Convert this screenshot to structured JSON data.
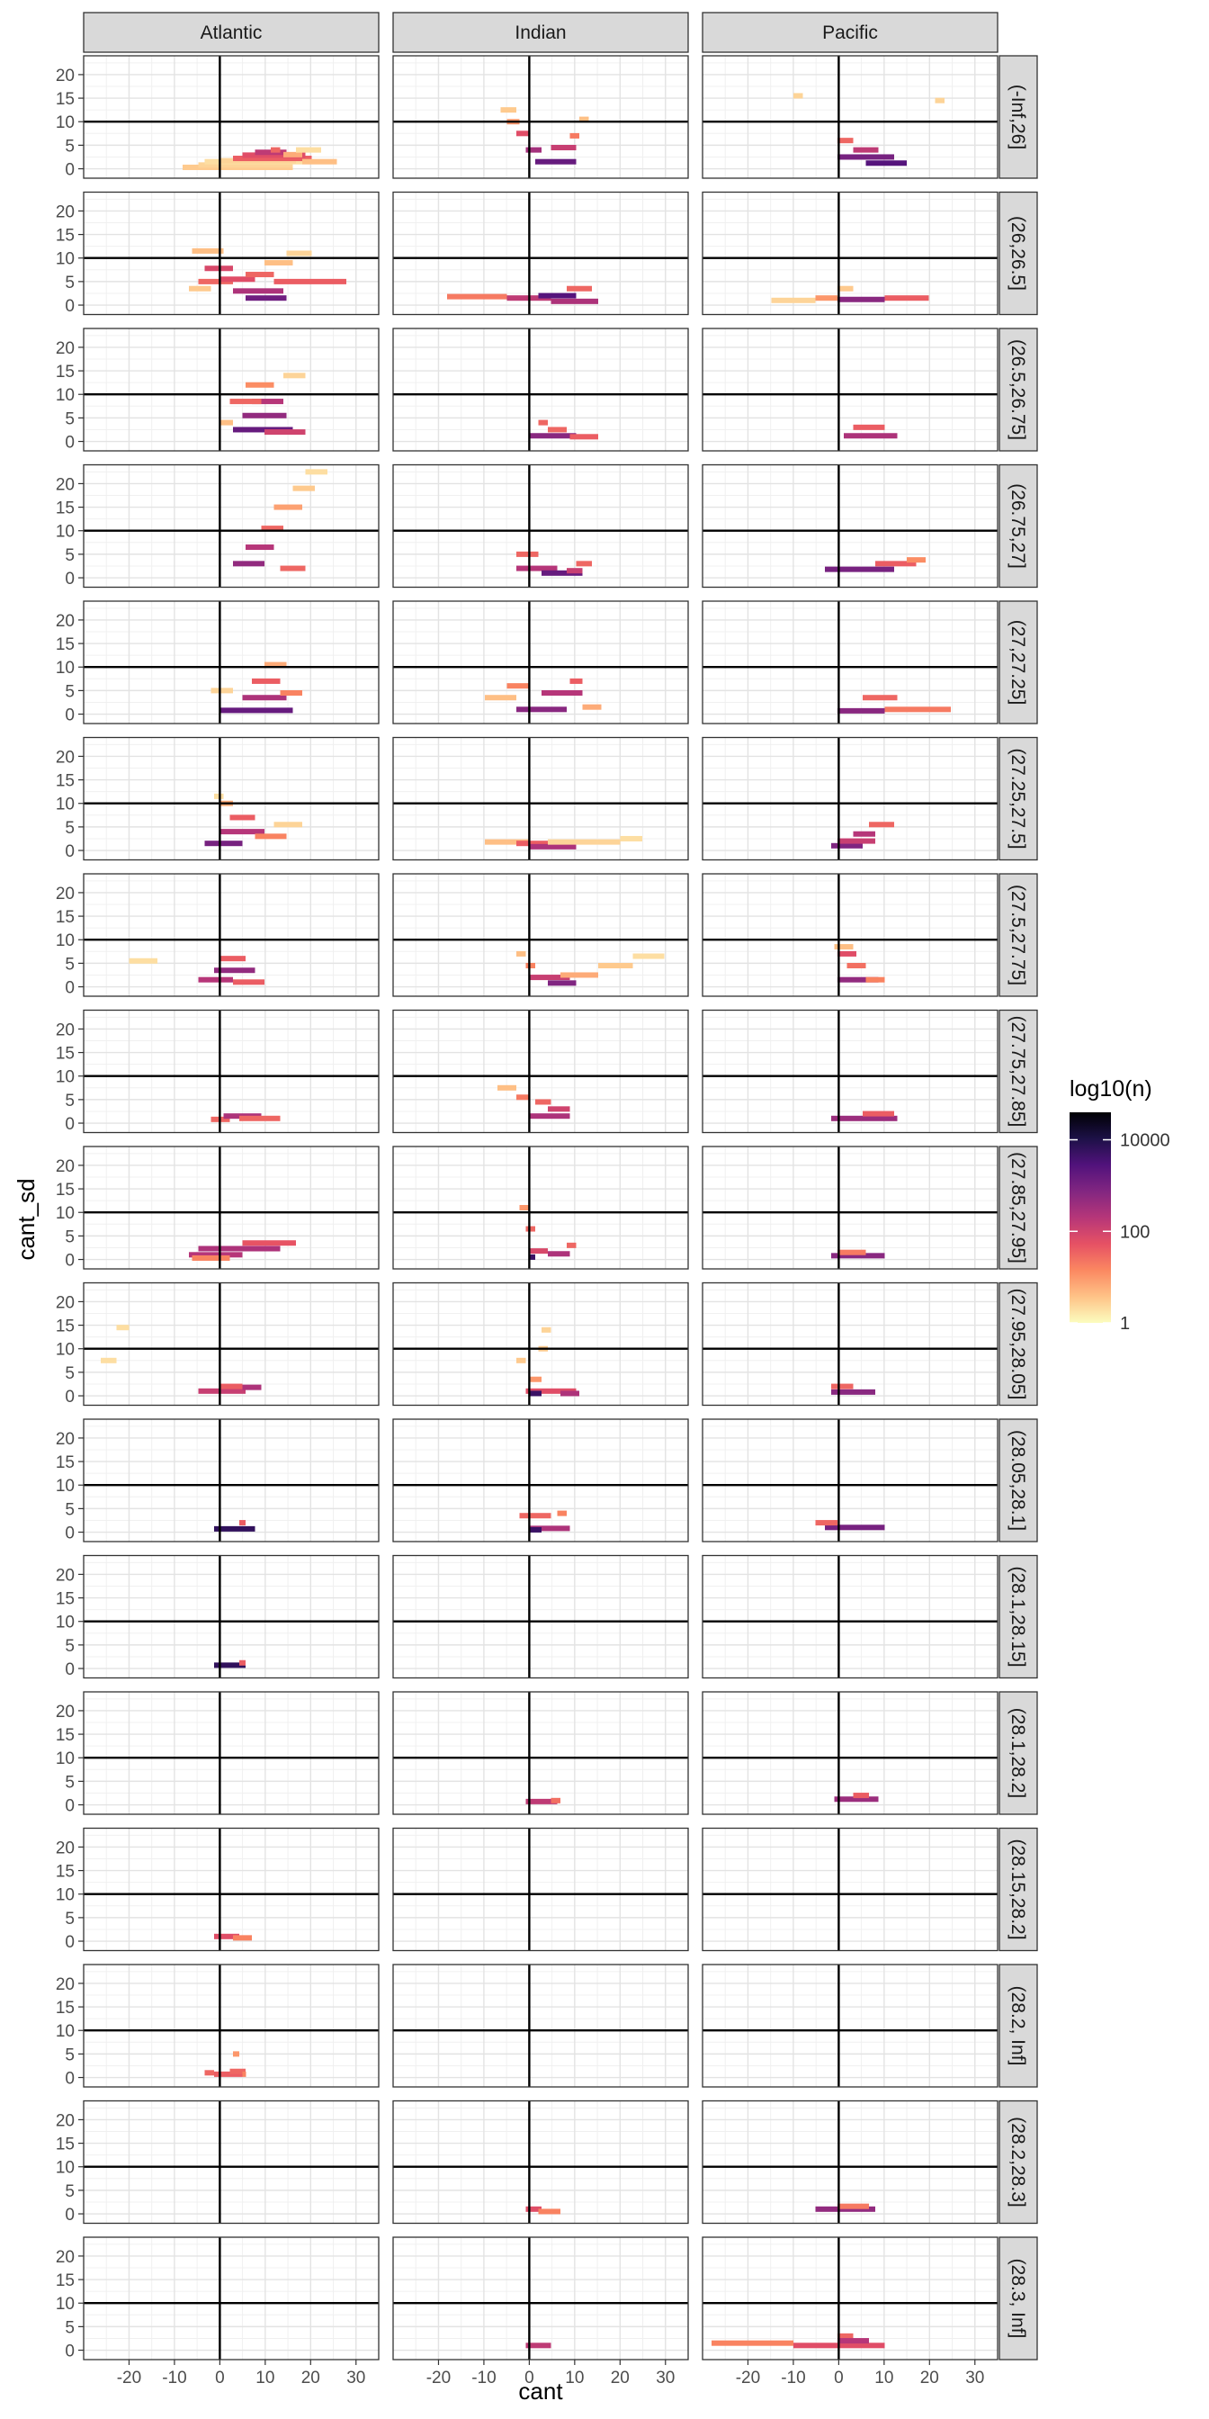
{
  "chart_data": {
    "type": "heatmap",
    "xlabel": "cant",
    "ylabel": "cant_sd",
    "xlim": [
      -30,
      35
    ],
    "ylim": [
      -2,
      24
    ],
    "x_ticks": [
      -20,
      -10,
      0,
      10,
      20,
      30
    ],
    "y_ticks": [
      0,
      5,
      10,
      15,
      20
    ],
    "h_ref": 10,
    "v_ref": 0,
    "columns": [
      "Atlantic",
      "Indian",
      "Pacific"
    ],
    "rows": [
      "(-Inf,26]",
      "(26,26.5]",
      "(26.5,26.75]",
      "(26.75,27]",
      "(27,27.25]",
      "(27.25,27.5]",
      "(27.5,27.75]",
      "(27.75,27.85]",
      "(27.85,27.95]",
      "(27.95,28.05]",
      "(28.05,28.1]",
      "(28.1,28.15]",
      "(28.1,28.2]",
      "(28.15,28.2]",
      "(28.2, Inf]",
      "(28.2,28.3]",
      "(28.3, Inf]"
    ],
    "legend": {
      "title": "log10(n)",
      "labels": [
        "10000",
        "100",
        "1"
      ],
      "label_values": [
        4,
        2,
        0
      ],
      "range": [
        0,
        4.6
      ],
      "colors": [
        "#FCFDBF",
        "#FEC287",
        "#FB8861",
        "#E65164",
        "#B63679",
        "#822681",
        "#51127C",
        "#1D1147",
        "#000004"
      ]
    },
    "panels": [
      [
        [
          [
            -8,
            16,
            0.3,
            0.5
          ],
          [
            -5,
            16,
            0.8,
            0.4
          ],
          [
            -3,
            18,
            1.5,
            0.3
          ],
          [
            0,
            17,
            1.7,
            0.4
          ],
          [
            3,
            20,
            2.2,
            1.6
          ],
          [
            5,
            19,
            2.9,
            1.8
          ],
          [
            8,
            15,
            3.5,
            2.2
          ],
          [
            11,
            13,
            4,
            1.5
          ],
          [
            18,
            26,
            1.5,
            0.6
          ],
          [
            14,
            18,
            3,
            0.8
          ],
          [
            17,
            22,
            4,
            0.3
          ]
        ],
        [
          [
            -3,
            3,
            7.8,
            1.9
          ],
          [
            -5,
            3,
            5,
            1.5
          ],
          [
            -6,
            1,
            11.5,
            0.6
          ],
          [
            0,
            8,
            5.5,
            1.8
          ],
          [
            3,
            14,
            3,
            2.4
          ],
          [
            6,
            15,
            1.5,
            3.1
          ],
          [
            6,
            12,
            6.5,
            1.5
          ],
          [
            12,
            28,
            5,
            1.6
          ],
          [
            10,
            16,
            9,
            0.6
          ],
          [
            15,
            20,
            11,
            0.4
          ],
          [
            -7,
            -2,
            3.5,
            0.5
          ]
        ],
        [
          [
            3,
            16,
            2.5,
            3.2
          ],
          [
            5,
            15,
            5.5,
            2.7
          ],
          [
            7,
            14,
            8.5,
            2.3
          ],
          [
            6,
            12,
            12,
            1.1
          ],
          [
            14,
            19,
            14,
            0.4
          ],
          [
            0,
            3,
            4,
            0.6
          ],
          [
            10,
            19,
            2,
            2
          ],
          [
            2,
            9,
            8.5,
            1.5
          ]
        ],
        [
          [
            3,
            10,
            3,
            2.7
          ],
          [
            6,
            12,
            6.5,
            2.3
          ],
          [
            9,
            14,
            10.5,
            1.5
          ],
          [
            12,
            18,
            15,
            0.9
          ],
          [
            16,
            21,
            19,
            0.5
          ],
          [
            19,
            24,
            22.5,
            0.3
          ],
          [
            13,
            19,
            2,
            1.5
          ]
        ],
        [
          [
            0,
            16,
            0.8,
            3.2
          ],
          [
            5,
            15,
            3.5,
            2.4
          ],
          [
            7,
            13,
            7,
            1.6
          ],
          [
            10,
            15,
            10.5,
            0.8
          ],
          [
            13,
            18,
            4.5,
            1.2
          ],
          [
            -2,
            3,
            5,
            0.4
          ]
        ],
        [
          [
            -3,
            5,
            1.5,
            3
          ],
          [
            0,
            10,
            4,
            2.3
          ],
          [
            2,
            8,
            7,
            1.6
          ],
          [
            0,
            3,
            10,
            0.8
          ],
          [
            8,
            15,
            3,
            1.2
          ],
          [
            12,
            18,
            5.5,
            0.4
          ],
          [
            -1,
            1,
            11.5,
            0.3
          ]
        ],
        [
          [
            -5,
            3,
            1.5,
            2.3
          ],
          [
            -1,
            8,
            3.5,
            2.7
          ],
          [
            0,
            6,
            6,
            1.6
          ],
          [
            3,
            10,
            1,
            1.6
          ],
          [
            -20,
            -14,
            5.5,
            0.3
          ]
        ],
        [
          [
            -2,
            2,
            0.8,
            1.5
          ],
          [
            1,
            9,
            1.5,
            2.4
          ],
          [
            4,
            13,
            1,
            1.5
          ]
        ],
        [
          [
            -7,
            5,
            1,
            2.3
          ],
          [
            -5,
            13,
            2.3,
            2.4
          ],
          [
            5,
            17,
            3.5,
            1.7
          ],
          [
            -6,
            2,
            0.3,
            1.2
          ]
        ],
        [
          [
            -5,
            6,
            1,
            2.1
          ],
          [
            0,
            5,
            2,
            1.6
          ],
          [
            5,
            9,
            1.8,
            2.4
          ],
          [
            -23,
            -20,
            14.5,
            0.3
          ],
          [
            -26,
            -23,
            7.5,
            0.3
          ]
        ],
        [
          [
            -1,
            8,
            0.7,
            3.8
          ],
          [
            4,
            6,
            2,
            1.6
          ]
        ],
        [
          [
            -1,
            6,
            0.7,
            3.8
          ],
          [
            4,
            6,
            1.2,
            1.6
          ]
        ],
        [],
        [
          [
            -1,
            4,
            1,
            1.8
          ],
          [
            3,
            7,
            0.7,
            1.2
          ]
        ],
        [
          [
            -3,
            -1,
            1,
            1.5
          ],
          [
            -1,
            5,
            0.7,
            1.6
          ],
          [
            2,
            6,
            1.3,
            1.5
          ],
          [
            3,
            4,
            5,
            1
          ],
          [
            5,
            6,
            0.7,
            1.2
          ]
        ],
        [],
        []
      ],
      [
        [
          [
            -6,
            -3,
            12.5,
            0.5
          ],
          [
            -5,
            -2,
            10,
            1
          ],
          [
            -3,
            0,
            7.5,
            1.8
          ],
          [
            -1,
            3,
            4,
            2.5
          ],
          [
            1,
            10,
            1.5,
            3.2
          ],
          [
            5,
            10,
            4.5,
            2.1
          ],
          [
            9,
            11,
            7,
            1.3
          ],
          [
            11,
            13,
            10.5,
            0.6
          ]
        ],
        [
          [
            -18,
            -5,
            1.8,
            1.3
          ],
          [
            -5,
            5,
            1.5,
            2.2
          ],
          [
            2,
            10,
            2,
            3.4
          ],
          [
            8,
            14,
            3.5,
            1.5
          ],
          [
            5,
            15,
            0.8,
            2.4
          ]
        ],
        [
          [
            0,
            10,
            1.2,
            2.8
          ],
          [
            2,
            4,
            4,
            1.5
          ],
          [
            9,
            15,
            1,
            1.6
          ],
          [
            4,
            8,
            2.5,
            1.5
          ]
        ],
        [
          [
            -3,
            2,
            5,
            1.5
          ],
          [
            -3,
            6,
            2,
            2.3
          ],
          [
            3,
            12,
            1,
            3.2
          ],
          [
            10,
            14,
            3,
            1.5
          ],
          [
            8,
            12,
            1.5,
            2.1
          ]
        ],
        [
          [
            -10,
            -3,
            3.5,
            0.6
          ],
          [
            -3,
            8,
            1,
            2.8
          ],
          [
            3,
            12,
            4.5,
            2.3
          ],
          [
            9,
            12,
            7,
            1.6
          ],
          [
            12,
            16,
            1.5,
            0.8
          ],
          [
            -5,
            0,
            6,
            1.2
          ]
        ],
        [
          [
            -10,
            0,
            1.8,
            0.6
          ],
          [
            -3,
            6,
            1.5,
            1.6
          ],
          [
            0,
            10,
            0.8,
            2.4
          ],
          [
            4,
            20,
            1.8,
            0.4
          ],
          [
            20,
            25,
            2.5,
            0.3
          ]
        ],
        [
          [
            -3,
            -1,
            7,
            0.6
          ],
          [
            -1,
            1,
            4.5,
            1.2
          ],
          [
            0,
            9,
            2,
            2.1
          ],
          [
            4,
            10,
            0.8,
            2.9
          ],
          [
            7,
            15,
            2.5,
            0.8
          ],
          [
            15,
            23,
            4.5,
            0.5
          ],
          [
            23,
            30,
            6.5,
            0.3
          ]
        ],
        [
          [
            -7,
            -3,
            7.5,
            0.6
          ],
          [
            -3,
            0,
            5.5,
            1.3
          ],
          [
            0,
            9,
            1.5,
            2.4
          ],
          [
            4,
            9,
            3,
            2
          ],
          [
            1,
            5,
            4.5,
            1.5
          ]
        ],
        [
          [
            -2,
            0,
            11,
            1
          ],
          [
            -1,
            1,
            6.5,
            1.5
          ],
          [
            0,
            4,
            1.8,
            1.9
          ],
          [
            4,
            9,
            1.2,
            2.4
          ],
          [
            8,
            10,
            3,
            1.5
          ],
          [
            0,
            1,
            0.5,
            3.7
          ]
        ],
        [
          [
            -3,
            -1,
            7.5,
            0.5
          ],
          [
            0,
            3,
            3.5,
            1
          ],
          [
            2,
            4,
            10,
            0.5
          ],
          [
            3,
            5,
            14,
            0.4
          ],
          [
            -1,
            10,
            1,
            1.8
          ],
          [
            7,
            11,
            0.5,
            2.4
          ],
          [
            0,
            3,
            0.5,
            3.7
          ]
        ],
        [
          [
            -2,
            5,
            3.5,
            1.5
          ],
          [
            0,
            9,
            0.8,
            2.4
          ],
          [
            6,
            8,
            4,
            1.2
          ],
          [
            0,
            3,
            0.5,
            3.7
          ]
        ],
        [],
        [
          [
            -1,
            6,
            0.7,
            2.2
          ],
          [
            5,
            7,
            0.9,
            1.4
          ]
        ],
        [],
        [],
        [
          [
            -1,
            3,
            1,
            1.8
          ],
          [
            2,
            7,
            0.5,
            1.2
          ]
        ],
        [
          [
            -1,
            5,
            1,
            2.2
          ]
        ]
      ],
      [
        [
          [
            -10,
            -8,
            15.5,
            0.4
          ],
          [
            21,
            23,
            14.5,
            0.4
          ],
          [
            0,
            3,
            6,
            1.5
          ],
          [
            0,
            12,
            2.5,
            3
          ],
          [
            6,
            15,
            1.2,
            3.4
          ],
          [
            3,
            9,
            4,
            2.2
          ]
        ],
        [
          [
            -15,
            -5,
            1,
            0.4
          ],
          [
            -5,
            0,
            1.5,
            1
          ],
          [
            0,
            10,
            1.2,
            2.8
          ],
          [
            10,
            20,
            1.5,
            1.6
          ],
          [
            0,
            3,
            3.5,
            0.5
          ]
        ],
        [
          [
            1,
            13,
            1.2,
            2.4
          ],
          [
            3,
            10,
            3,
            1.6
          ]
        ],
        [
          [
            -3,
            12,
            1.8,
            3
          ],
          [
            8,
            17,
            3,
            1.6
          ],
          [
            15,
            19,
            3.8,
            1.1
          ]
        ],
        [
          [
            0,
            10,
            0.7,
            2.8
          ],
          [
            10,
            25,
            1,
            1.3
          ],
          [
            5,
            13,
            3.5,
            1.5
          ]
        ],
        [
          [
            -2,
            5,
            1,
            2.9
          ],
          [
            3,
            8,
            3.5,
            2.3
          ],
          [
            7,
            12,
            5.5,
            1.5
          ],
          [
            0,
            8,
            2,
            2.1
          ]
        ],
        [
          [
            0,
            4,
            7,
            1.8
          ],
          [
            2,
            6,
            4.5,
            1.4
          ],
          [
            0,
            9,
            1.5,
            2.7
          ],
          [
            6,
            10,
            1.5,
            1.2
          ],
          [
            -1,
            3,
            8.5,
            0.6
          ]
        ],
        [
          [
            -2,
            13,
            1,
            2.6
          ],
          [
            5,
            12,
            2,
            1.6
          ]
        ],
        [
          [
            -2,
            10,
            0.8,
            2.8
          ],
          [
            0,
            6,
            1.5,
            1.3
          ]
        ],
        [
          [
            -2,
            8,
            0.8,
            2.8
          ],
          [
            -2,
            3,
            2,
            1.5
          ]
        ],
        [
          [
            -3,
            10,
            1,
            3
          ],
          [
            -5,
            0,
            2,
            1.5
          ]
        ],
        [],
        [
          [
            -1,
            9,
            1.2,
            2.6
          ],
          [
            3,
            7,
            2,
            1.6
          ]
        ],
        [],
        [],
        [
          [
            -5,
            8,
            1,
            2.7
          ],
          [
            0,
            7,
            1.6,
            1.3
          ]
        ],
        [
          [
            -28,
            -10,
            1.5,
            1.2
          ],
          [
            -10,
            10,
            1,
            1.8
          ],
          [
            0,
            3,
            3,
            1.5
          ],
          [
            0,
            7,
            2,
            2.3
          ]
        ]
      ]
    ]
  }
}
